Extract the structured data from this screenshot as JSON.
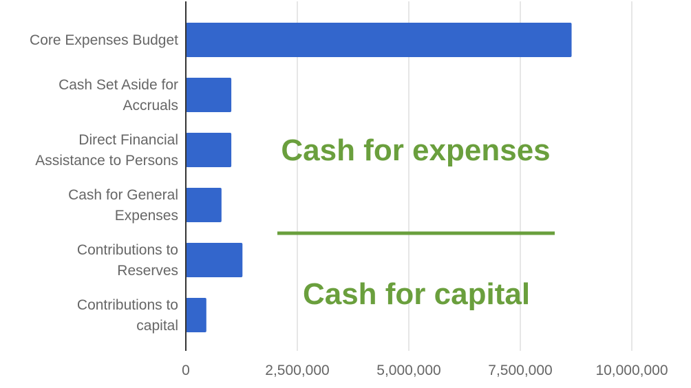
{
  "chart_data": {
    "type": "bar",
    "orientation": "horizontal",
    "title": "",
    "xlabel": "",
    "ylabel": "",
    "categories": [
      [
        "Core Expenses Budget"
      ],
      [
        "Cash Set Aside for",
        "Accruals"
      ],
      [
        "Direct Financial",
        "Assistance to Persons"
      ],
      [
        "Cash for General",
        "Expenses"
      ],
      [
        "Contributions to",
        "Reserves"
      ],
      [
        "Contributions to",
        "capital"
      ]
    ],
    "values": [
      8650000,
      1020000,
      1020000,
      800000,
      1270000,
      460000
    ],
    "xlim": [
      0,
      10000000
    ],
    "ticks": [
      0,
      2500000,
      5000000,
      7500000,
      10000000
    ],
    "tick_labels": [
      "0",
      "2,500,000",
      "5,000,000",
      "7,500,000",
      "10,000,000"
    ],
    "grid": true,
    "legend": "none",
    "bar_color": "#3366cc",
    "annotations": [
      {
        "text": "Cash for expenses",
        "color": "#6a9f3d"
      },
      {
        "text": "Cash for capital",
        "color": "#6a9f3d"
      }
    ],
    "divider_color": "#6a9f3d"
  }
}
